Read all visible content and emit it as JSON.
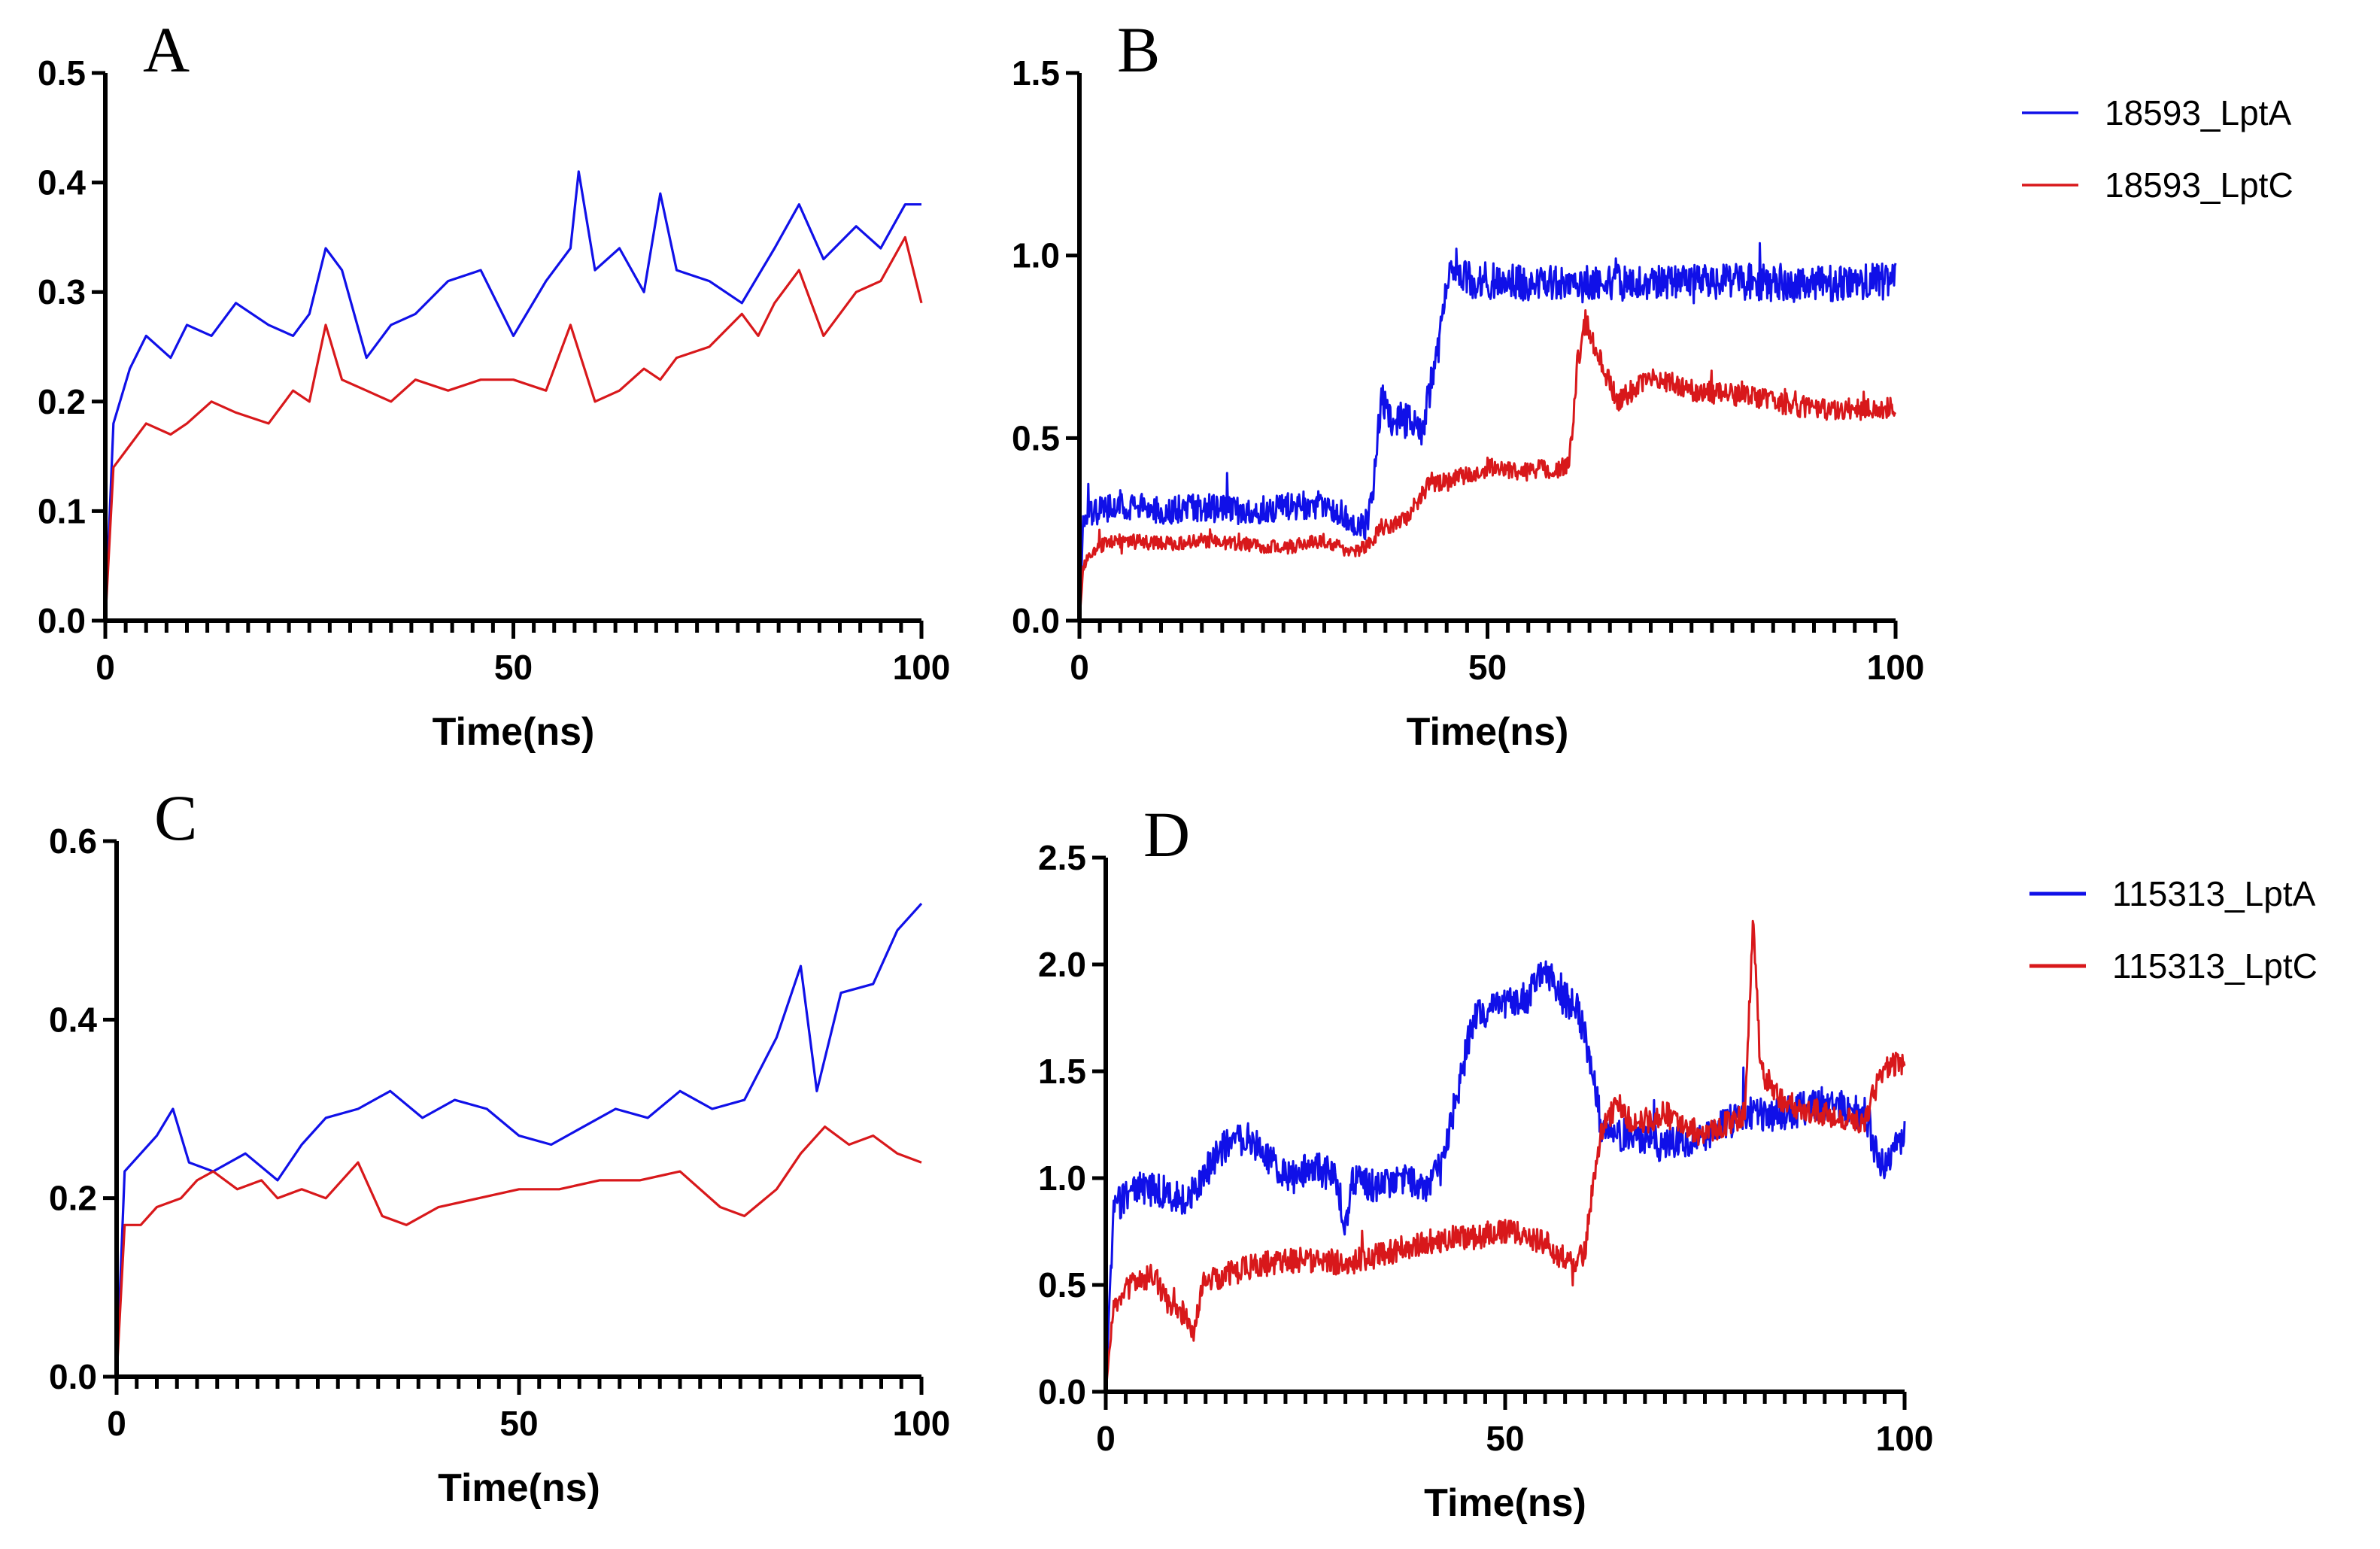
{
  "colors": {
    "blue": "#1010e8",
    "red": "#d8181b"
  },
  "chart_data": [
    {
      "panel": "A",
      "type": "line",
      "xlabel": "Time(ns)",
      "ylabel": "",
      "xlim": [
        0,
        100
      ],
      "ylim": [
        0,
        0.5
      ],
      "x_ticks": [
        "0",
        "50",
        "100"
      ],
      "y_ticks": [
        "0.0",
        "0.1",
        "0.2",
        "0.3",
        "0.4",
        "0.5"
      ],
      "legend": null,
      "noisy": false,
      "series": [
        {
          "name": "18593_LptA",
          "color": "#1010e8",
          "x": [
            0,
            1,
            3,
            5,
            8,
            10,
            13,
            16,
            20,
            23,
            25,
            27,
            29,
            32,
            35,
            38,
            42,
            46,
            50,
            54,
            57,
            58,
            60,
            63,
            66,
            68,
            70,
            74,
            78,
            82,
            85,
            88,
            92,
            95,
            98,
            100
          ],
          "y": [
            0,
            0.18,
            0.23,
            0.26,
            0.24,
            0.27,
            0.26,
            0.29,
            0.27,
            0.26,
            0.28,
            0.34,
            0.32,
            0.24,
            0.27,
            0.28,
            0.31,
            0.32,
            0.26,
            0.31,
            0.34,
            0.41,
            0.32,
            0.34,
            0.3,
            0.39,
            0.32,
            0.31,
            0.29,
            0.34,
            0.38,
            0.33,
            0.36,
            0.34,
            0.38,
            0.38
          ]
        },
        {
          "name": "18593_LptC",
          "color": "#d8181b",
          "x": [
            0,
            1,
            3,
            5,
            8,
            10,
            13,
            16,
            20,
            23,
            25,
            27,
            29,
            32,
            35,
            38,
            42,
            46,
            50,
            54,
            57,
            60,
            63,
            66,
            68,
            70,
            74,
            78,
            80,
            82,
            85,
            88,
            92,
            95,
            98,
            100
          ],
          "y": [
            0,
            0.14,
            0.16,
            0.18,
            0.17,
            0.18,
            0.2,
            0.19,
            0.18,
            0.21,
            0.2,
            0.27,
            0.22,
            0.21,
            0.2,
            0.22,
            0.21,
            0.22,
            0.22,
            0.21,
            0.27,
            0.2,
            0.21,
            0.23,
            0.22,
            0.24,
            0.25,
            0.28,
            0.26,
            0.29,
            0.32,
            0.26,
            0.3,
            0.31,
            0.35,
            0.29
          ]
        }
      ]
    },
    {
      "panel": "B",
      "type": "line",
      "xlabel": "Time(ns)",
      "ylabel": "",
      "xlim": [
        0,
        100
      ],
      "ylim": [
        0,
        1.5
      ],
      "x_ticks": [
        "0",
        "50",
        "100"
      ],
      "y_ticks": [
        "0.0",
        "0.5",
        "1.0",
        "1.5"
      ],
      "legend": [
        "18593_LptA",
        "18593_LptC"
      ],
      "noisy": true,
      "series": [
        {
          "name": "18593_LptA",
          "color": "#1010e8",
          "noise": 0.05,
          "x": [
            0,
            0.5,
            2,
            5,
            10,
            15,
            20,
            25,
            30,
            33,
            35,
            36,
            37,
            38,
            40,
            42,
            44,
            45,
            46,
            48,
            50,
            60,
            70,
            80,
            90,
            100
          ],
          "y": [
            0,
            0.28,
            0.3,
            0.32,
            0.3,
            0.31,
            0.3,
            0.31,
            0.32,
            0.28,
            0.25,
            0.35,
            0.62,
            0.55,
            0.55,
            0.52,
            0.75,
            0.92,
            0.98,
            0.93,
            0.93,
            0.92,
            0.93,
            0.93,
            0.92,
            0.93
          ]
        },
        {
          "name": "18593_LptC",
          "color": "#d8181b",
          "noise": 0.03,
          "x": [
            0,
            0.5,
            2,
            5,
            10,
            15,
            20,
            25,
            30,
            33,
            35,
            37,
            40,
            43,
            45,
            50,
            55,
            60,
            61,
            62,
            64,
            66,
            70,
            75,
            80,
            85,
            90,
            100
          ],
          "y": [
            0,
            0.15,
            0.2,
            0.22,
            0.21,
            0.22,
            0.21,
            0.2,
            0.22,
            0.19,
            0.2,
            0.25,
            0.28,
            0.38,
            0.38,
            0.42,
            0.41,
            0.42,
            0.7,
            0.82,
            0.7,
            0.6,
            0.67,
            0.63,
            0.62,
            0.6,
            0.58,
            0.58
          ]
        }
      ]
    },
    {
      "panel": "C",
      "type": "line",
      "xlabel": "Time(ns)",
      "ylabel": "",
      "xlim": [
        0,
        100
      ],
      "ylim": [
        0,
        0.6
      ],
      "x_ticks": [
        "0",
        "50",
        "100"
      ],
      "y_ticks": [
        "0.0",
        "0.2",
        "0.4",
        "0.6"
      ],
      "legend": null,
      "noisy": false,
      "series": [
        {
          "name": "115313_LptA",
          "color": "#1010e8",
          "x": [
            0,
            1,
            3,
            5,
            7,
            9,
            12,
            16,
            20,
            23,
            26,
            30,
            34,
            38,
            42,
            46,
            50,
            54,
            58,
            62,
            66,
            70,
            74,
            78,
            82,
            85,
            87,
            90,
            94,
            97,
            100
          ],
          "y": [
            0,
            0.23,
            0.25,
            0.27,
            0.3,
            0.24,
            0.23,
            0.25,
            0.22,
            0.26,
            0.29,
            0.3,
            0.32,
            0.29,
            0.31,
            0.3,
            0.27,
            0.26,
            0.28,
            0.3,
            0.29,
            0.32,
            0.3,
            0.31,
            0.38,
            0.46,
            0.32,
            0.43,
            0.44,
            0.5,
            0.53
          ]
        },
        {
          "name": "115313_LptC",
          "color": "#d8181b",
          "x": [
            0,
            1,
            3,
            5,
            8,
            10,
            12,
            15,
            18,
            20,
            23,
            26,
            30,
            33,
            36,
            40,
            45,
            50,
            55,
            60,
            65,
            70,
            75,
            78,
            82,
            85,
            88,
            91,
            94,
            97,
            100
          ],
          "y": [
            0,
            0.17,
            0.17,
            0.19,
            0.2,
            0.22,
            0.23,
            0.21,
            0.22,
            0.2,
            0.21,
            0.2,
            0.24,
            0.18,
            0.17,
            0.19,
            0.2,
            0.21,
            0.21,
            0.22,
            0.22,
            0.23,
            0.19,
            0.18,
            0.21,
            0.25,
            0.28,
            0.26,
            0.27,
            0.25,
            0.24
          ]
        }
      ]
    },
    {
      "panel": "D",
      "type": "line",
      "xlabel": "Time(ns)",
      "ylabel": "",
      "xlim": [
        0,
        100
      ],
      "ylim": [
        0,
        2.5
      ],
      "x_ticks": [
        "0",
        "50",
        "100"
      ],
      "y_ticks": [
        "0.0",
        "0.5",
        "1.0",
        "1.5",
        "2.0",
        "2.5"
      ],
      "legend": [
        "115313_LptA",
        "115313_LptC"
      ],
      "noisy": true,
      "series": [
        {
          "name": "115313_LptA",
          "color": "#1010e8",
          "noise": 0.08,
          "x": [
            0,
            1,
            3,
            6,
            10,
            13,
            15,
            18,
            20,
            23,
            26,
            29,
            30,
            31,
            34,
            37,
            40,
            42,
            44,
            46,
            50,
            53,
            55,
            57,
            59,
            61,
            62,
            64,
            66,
            70,
            75,
            80,
            85,
            90,
            95,
            97,
            98,
            100
          ],
          "y": [
            0,
            0.85,
            0.95,
            0.95,
            0.9,
            1.05,
            1.15,
            1.2,
            1.1,
            1.0,
            1.05,
            1.0,
            0.75,
            1.0,
            0.95,
            1.0,
            0.95,
            1.05,
            1.4,
            1.75,
            1.8,
            1.85,
            2.0,
            1.85,
            1.8,
            1.5,
            1.25,
            1.2,
            1.2,
            1.15,
            1.2,
            1.3,
            1.3,
            1.35,
            1.3,
            1.05,
            1.1,
            1.2
          ]
        },
        {
          "name": "115313_LptC",
          "color": "#d8181b",
          "noise": 0.06,
          "x": [
            0,
            1,
            3,
            6,
            8,
            10,
            11,
            12,
            15,
            20,
            25,
            30,
            35,
            40,
            45,
            50,
            55,
            58,
            60,
            61,
            62,
            64,
            66,
            70,
            75,
            80,
            81,
            82,
            85,
            90,
            95,
            97,
            100
          ],
          "y": [
            0,
            0.4,
            0.5,
            0.55,
            0.4,
            0.35,
            0.25,
            0.5,
            0.55,
            0.6,
            0.62,
            0.6,
            0.65,
            0.7,
            0.72,
            0.75,
            0.7,
            0.6,
            0.65,
            1.0,
            1.2,
            1.35,
            1.25,
            1.3,
            1.2,
            1.3,
            2.2,
            1.5,
            1.35,
            1.3,
            1.25,
            1.5,
            1.55
          ]
        }
      ]
    }
  ]
}
